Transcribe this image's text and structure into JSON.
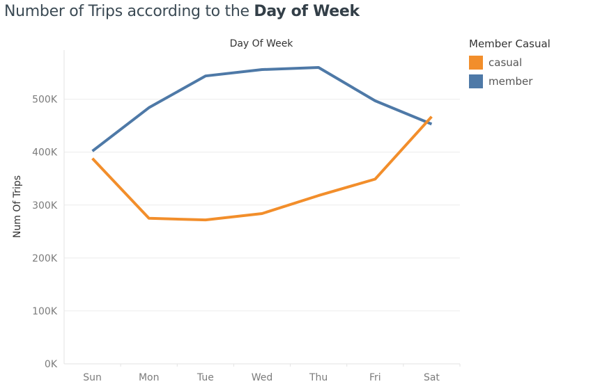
{
  "title": {
    "prefix": "Number of Trips according to the ",
    "emphasis": "Day of Week"
  },
  "legend": {
    "title": "Member Casual"
  },
  "chart_data": {
    "type": "line",
    "title": "Number of Trips according to the Day of Week",
    "column_header": "Day Of Week",
    "xlabel": "",
    "ylabel": "Num Of Trips",
    "categories": [
      "Sun",
      "Mon",
      "Tue",
      "Wed",
      "Thu",
      "Fri",
      "Sat"
    ],
    "ylim": [
      0,
      560000
    ],
    "yticks": [
      0,
      100000,
      200000,
      300000,
      400000,
      500000
    ],
    "ytick_labels": [
      "0K",
      "100K",
      "200K",
      "300K",
      "400K",
      "500K"
    ],
    "grid": true,
    "legend_position": "right",
    "series": [
      {
        "name": "casual",
        "color": "#f28e2b",
        "values": [
          388000,
          275000,
          272000,
          284000,
          318000,
          349000,
          467000
        ]
      },
      {
        "name": "member",
        "color": "#4e79a7",
        "values": [
          402000,
          484000,
          544000,
          556000,
          560000,
          497000,
          453000
        ]
      }
    ]
  }
}
